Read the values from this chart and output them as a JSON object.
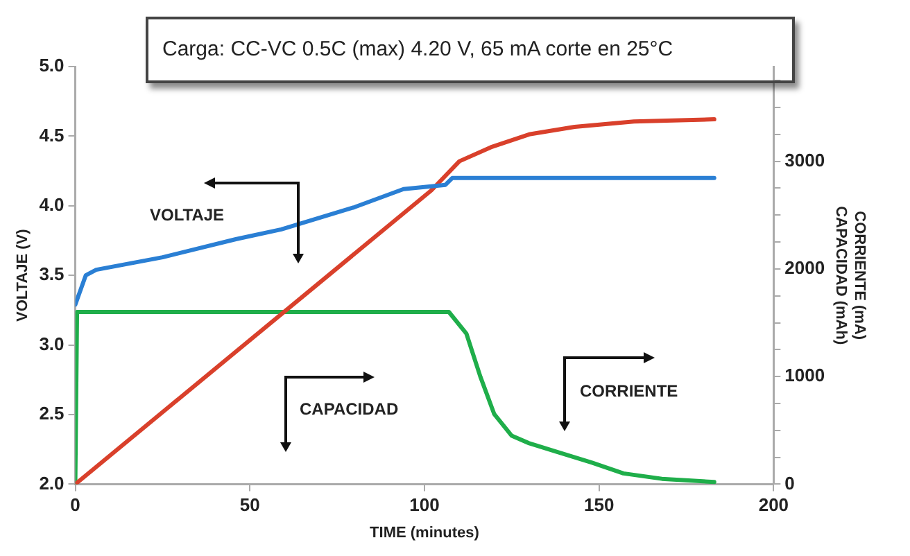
{
  "chart_data": {
    "type": "line",
    "title": "Carga: CC-VC 0.5C (max) 4.20 V, 65 mA corte en 25°C",
    "xlabel": "TIME (minutes)",
    "ylabel": "VOLTAJE (V)",
    "y2label": "CORRIENTE (mA)\nCAPACIDAD (mAh)",
    "xlim": [
      0,
      200
    ],
    "xticks": [
      0,
      50,
      100,
      150,
      200
    ],
    "ylim": [
      2,
      5
    ],
    "yticks": [
      {
        "value": 2,
        "label": "2.0"
      },
      {
        "value": 2.5,
        "label": "2.5"
      },
      {
        "value": 3,
        "label": "3.0"
      },
      {
        "value": 3.5,
        "label": "3.5"
      },
      {
        "value": 4,
        "label": "4.0"
      },
      {
        "value": 4.5,
        "label": "4.5"
      },
      {
        "value": 5,
        "label": "5.0"
      }
    ],
    "y2lim": [
      0,
      3880
    ],
    "y2ticks": [
      0,
      {
        "value": 250,
        "label": null
      },
      {
        "value": 500,
        "label": null
      },
      {
        "value": 750,
        "label": null
      },
      1000,
      {
        "value": 1250,
        "label": null
      },
      {
        "value": 1500,
        "label": null
      },
      {
        "value": 1750,
        "label": null
      },
      2000,
      {
        "value": 2250,
        "label": null
      },
      {
        "value": 2500,
        "label": null
      },
      {
        "value": 2750,
        "label": null
      },
      3000,
      {
        "value": 3250,
        "label": null
      },
      {
        "value": 3500,
        "label": null
      },
      {
        "value": 3750,
        "label": null
      }
    ],
    "grid": false,
    "legend": false,
    "marker": "none",
    "line_style": "solid",
    "annotations": [
      "VOLTAJE",
      "CAPACIDAD",
      "CORRIENTE"
    ],
    "series": [
      {
        "color": "#2a7fd4",
        "x": [
          0,
          3,
          6,
          25,
          46,
          59,
          80,
          94,
          106,
          108,
          183
        ],
        "values": [
          3.29,
          3.5,
          3.54,
          3.63,
          3.76,
          3.83,
          3.99,
          4.12,
          4.15,
          4.2,
          4.2
        ]
      },
      {
        "color": "#d9402b",
        "axis": "y2",
        "x": [
          0,
          102,
          110,
          119,
          130,
          143,
          160,
          183
        ],
        "values": [
          0,
          2730,
          3000,
          3130,
          3250,
          3320,
          3370,
          3390
        ]
      },
      {
        "color": "#1fae4a",
        "axis": "y2",
        "x": [
          0,
          0.5,
          107,
          112,
          116,
          120,
          125,
          130,
          138,
          148,
          157,
          168,
          183
        ],
        "values": [
          0,
          1600,
          1600,
          1400,
          1000,
          650,
          450,
          380,
          300,
          200,
          100,
          50,
          20
        ]
      }
    ]
  }
}
